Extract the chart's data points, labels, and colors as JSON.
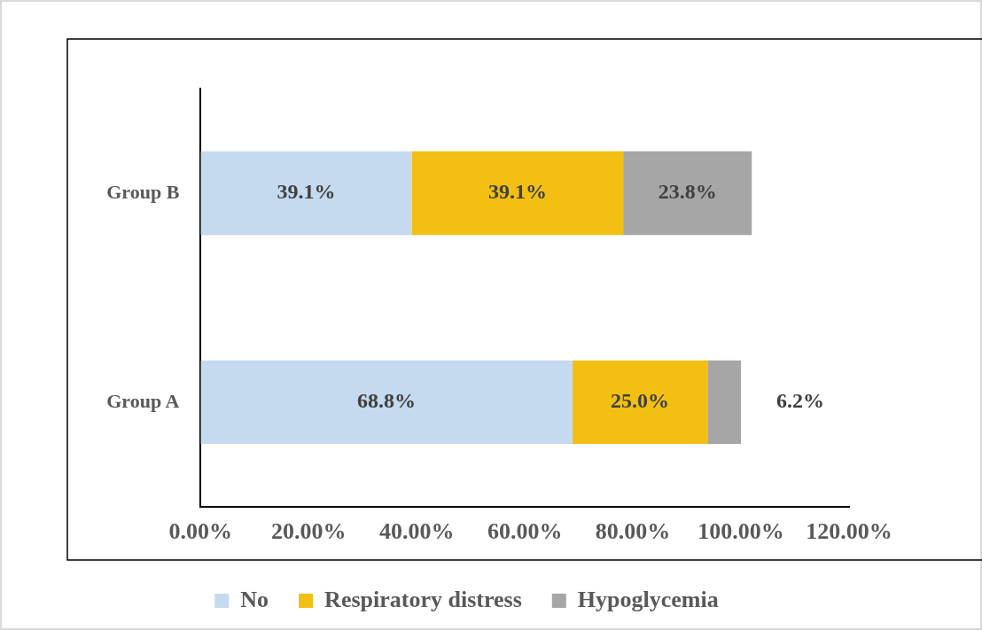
{
  "chart_data": {
    "type": "bar",
    "orientation": "horizontal",
    "stacked": true,
    "categories": [
      "Group B",
      "Group A"
    ],
    "series": [
      {
        "name": "No",
        "color": "#c5d9ef",
        "values": [
          39.1,
          68.8
        ]
      },
      {
        "name": "Respiratory distress",
        "color": "#f2bf12",
        "values": [
          39.1,
          25.0
        ]
      },
      {
        "name": "Hypoglycemia",
        "color": "#a6a6a6",
        "values": [
          23.8,
          6.2
        ]
      }
    ],
    "xlim": [
      0,
      120
    ],
    "xticks": [
      {
        "value": 0,
        "label": "0.00%"
      },
      {
        "value": 20,
        "label": "20.00%"
      },
      {
        "value": 40,
        "label": "40.00%"
      },
      {
        "value": 60,
        "label": "60.00%"
      },
      {
        "value": 80,
        "label": "80.00%"
      },
      {
        "value": 100,
        "label": "100.00%"
      },
      {
        "value": 120,
        "label": "120.00%"
      }
    ],
    "value_labels": [
      [
        "39.1%",
        "68.8%"
      ],
      [
        "39.1%",
        "25.0%"
      ],
      [
        "23.8%",
        "6.2%"
      ]
    ],
    "grid": false,
    "legend": "bottom"
  }
}
